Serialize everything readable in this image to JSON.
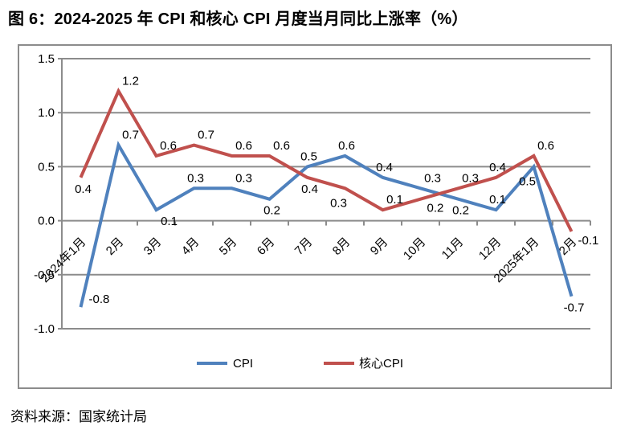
{
  "page": {
    "title": "图 6：2024-2025 年 CPI 和核心 CPI 月度当月同比上涨率（%）",
    "source_note": "资料来源：国家统计局"
  },
  "chart_data": {
    "type": "line",
    "title": "2024-2025 年 CPI 和核心 CPI 月度当月同比上涨率（%）",
    "xlabel": "",
    "ylabel": "",
    "categories": [
      "2024年1月",
      "2月",
      "3月",
      "4月",
      "5月",
      "6月",
      "7月",
      "8月",
      "9月",
      "10月",
      "11月",
      "12月",
      "2025年1月",
      "2月"
    ],
    "series": [
      {
        "name": "CPI",
        "color": "#4F81BD",
        "values": [
          -0.8,
          0.7,
          0.1,
          0.3,
          0.3,
          0.2,
          0.5,
          0.6,
          0.4,
          0.3,
          0.2,
          0.1,
          0.5,
          -0.7
        ],
        "label_positions": [
          "right-above",
          "above-right",
          "below-right",
          "above",
          "above-right",
          "below",
          "above",
          "above",
          "above",
          "above-right",
          "below",
          "above",
          "below-left",
          "below"
        ]
      },
      {
        "name": "核心CPI",
        "color": "#C0504D",
        "values": [
          0.4,
          1.2,
          0.6,
          0.7,
          0.6,
          0.6,
          0.4,
          0.3,
          0.1,
          0.2,
          0.3,
          0.4,
          0.6,
          -0.1
        ],
        "label_positions": [
          "below",
          "above-right",
          "above-right",
          "above-right",
          "above-right",
          "above-right",
          "below",
          "below-left",
          "above-right",
          "right-below",
          "above-right",
          "above",
          "above-right",
          "right-below"
        ]
      }
    ],
    "y_axis": {
      "min": -1.0,
      "max": 1.5,
      "step": 0.5,
      "tick_labels": [
        "1.5",
        "1.0",
        "0.5",
        "0.0",
        "-0.5",
        "-1.0"
      ]
    },
    "ylim": [
      -1.0,
      1.5
    ],
    "grid": true,
    "data_labels": true,
    "legend_position": "bottom",
    "colors": {
      "grid": "#8C8C8C",
      "axis": "#8C8C8C",
      "text": "#000000"
    }
  }
}
